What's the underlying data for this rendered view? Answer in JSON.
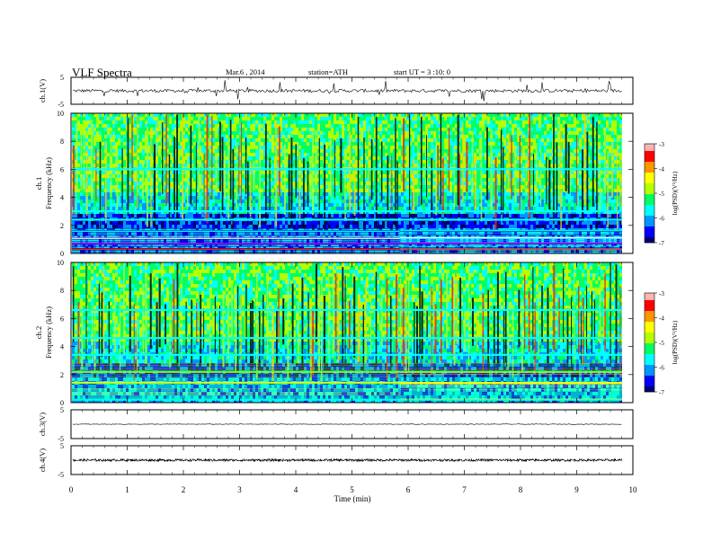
{
  "header": {
    "title": "VLF  Spectra",
    "date": "Mar.6  , 2014",
    "station": "station=ATH",
    "start": "start  UT  =   3  :10: 0"
  },
  "chart_data": [
    {
      "type": "line",
      "panel": "ch1-waveform",
      "ylabel": "ch.1(V)",
      "ylim": [
        -5,
        5
      ],
      "ytick_labels": [
        "5",
        "-5"
      ],
      "xlim": [
        0,
        10
      ],
      "description_values": {
        "baseline": 0,
        "noise_amplitude": 0.6,
        "spike_amplitude": 4
      },
      "color": "#000000"
    },
    {
      "type": "heatmap",
      "panel": "ch1-spectrogram",
      "ylabel_lines": [
        "ch.1",
        "Frequency  (kHz)"
      ],
      "ylim": [
        0,
        10
      ],
      "yticks": [
        0,
        2,
        4,
        6,
        8,
        10
      ],
      "xlim": [
        0,
        9.8
      ],
      "colorbar": {
        "label": "log(PSD)(V²/Hz)",
        "range": [
          -7,
          -3
        ],
        "ticks": [
          "-3",
          "-4",
          "-5",
          "-6",
          "-7"
        ]
      },
      "bands": [
        {
          "freq": 0.3,
          "level": -3.3,
          "color": "#ff2a00"
        },
        {
          "freq": 0.7,
          "level": -4.3,
          "color": "#cc00ff"
        },
        {
          "freq": 1.1,
          "level": -6.0,
          "color": "#ffffff"
        },
        {
          "freq": 1.6,
          "level": -5.6,
          "color": "#00ffff"
        },
        {
          "freq": 2.4,
          "level": -5.6,
          "color": "#00ffff"
        },
        {
          "freq": 3.0,
          "level": -5.6,
          "color": "#00ffff"
        },
        {
          "freq": 6.0,
          "level": -5.6,
          "color": "#00ffff"
        }
      ]
    },
    {
      "type": "heatmap",
      "panel": "ch2-spectrogram",
      "ylabel_lines": [
        "ch.2",
        "Frequency  (kHz)"
      ],
      "ylim": [
        0,
        10
      ],
      "yticks": [
        0,
        2,
        4,
        6,
        8,
        10
      ],
      "xlim": [
        0,
        9.8
      ],
      "colorbar": {
        "label": "log(PSD)(V²/Hz)",
        "range": [
          -7,
          -3
        ],
        "ticks": [
          "-3",
          "-4",
          "-5",
          "-6",
          "-7"
        ]
      },
      "bands": [
        {
          "freq": 0.2,
          "level": -5.6,
          "color": "#00ffff"
        },
        {
          "freq": 1.4,
          "level": -4.5,
          "color": "#ffff00"
        },
        {
          "freq": 2.2,
          "level": -4.7,
          "color": "#80ff00"
        },
        {
          "freq": 3.4,
          "level": -5.6,
          "color": "#00ffff"
        },
        {
          "freq": 4.6,
          "level": -5.6,
          "color": "#00ffff"
        },
        {
          "freq": 6.6,
          "level": -5.6,
          "color": "#00ffff"
        }
      ]
    },
    {
      "type": "line",
      "panel": "ch3-waveform",
      "ylabel": "ch.3(V)",
      "ylim": [
        -5,
        5
      ],
      "ytick_labels": [
        "5",
        "-5"
      ],
      "xlim": [
        0,
        10
      ],
      "description_values": {
        "baseline": 0,
        "noise_amplitude": 0.1
      },
      "color": "#000000"
    },
    {
      "type": "line",
      "panel": "ch4-waveform",
      "ylabel": "ch.4(V)",
      "ylim": [
        -5,
        5
      ],
      "ytick_labels": [
        "5",
        "-5"
      ],
      "xlim": [
        0,
        10
      ],
      "description_values": {
        "baseline": 0,
        "noise_amplitude": 0.4
      },
      "color": "#000000"
    }
  ],
  "xaxis": {
    "label": "Time  (min)",
    "ticks": [
      "0",
      "1",
      "2",
      "3",
      "4",
      "5",
      "6",
      "7",
      "8",
      "9",
      "10"
    ],
    "range": [
      0,
      10
    ]
  },
  "colors": {
    "scale": [
      "#00006e",
      "#0000ff",
      "#0096ff",
      "#00ffff",
      "#00ff64",
      "#b4ff00",
      "#ffff00",
      "#ff9600",
      "#ff0000",
      "#ffb4b4",
      "#ffffff"
    ],
    "axis": "#000000"
  }
}
